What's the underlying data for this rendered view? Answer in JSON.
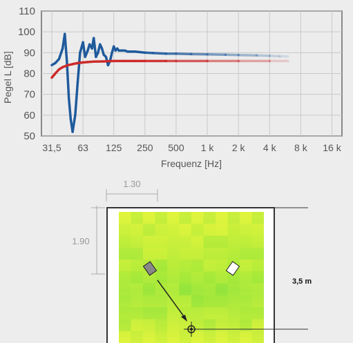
{
  "chart_data": {
    "type": "line",
    "ylabel": "Pegel L [dB]",
    "xlabel": "Frequenz [Hz]",
    "ylim": [
      50,
      110
    ],
    "yticks": [
      50,
      60,
      70,
      80,
      90,
      100,
      110
    ],
    "xtick_labels": [
      "31,5",
      "63",
      "125",
      "250",
      "500",
      "1 k",
      "2 k",
      "4 k",
      "8 k",
      "16 k"
    ],
    "xticks_hz": [
      31.5,
      63,
      125,
      250,
      500,
      1000,
      2000,
      4000,
      8000,
      16000
    ],
    "xlim_hz": [
      25,
      20000
    ],
    "grid": true,
    "series": [
      {
        "color": "#1f5a9c",
        "x": [
          31.5,
          34,
          37,
          40,
          42,
          44,
          46,
          48,
          50,
          53,
          56,
          59,
          63,
          66,
          70,
          73,
          77,
          80,
          84,
          88,
          92,
          96,
          100,
          105,
          110,
          115,
          120,
          125,
          130,
          135,
          140,
          150,
          160,
          170,
          180,
          200,
          250,
          300,
          400,
          500,
          700,
          1000,
          1500,
          2000,
          3000,
          4000,
          5000,
          6000
        ],
        "y": [
          84,
          85,
          87,
          92,
          99,
          86,
          68,
          58,
          52,
          60,
          76,
          90,
          95,
          88,
          91,
          94,
          92,
          97,
          88,
          90,
          94,
          92,
          89,
          88,
          84,
          86,
          90,
          93,
          91,
          92,
          91,
          91,
          91,
          90.5,
          90.5,
          90.5,
          90,
          89.8,
          89.5,
          89.5,
          89.3,
          89.2,
          89,
          88.9,
          88.7,
          88.5,
          88.3,
          88.2
        ]
      },
      {
        "color": "#cc2a2a",
        "x": [
          31.5,
          34,
          37,
          40,
          45,
          50,
          56,
          63,
          70,
          80,
          100,
          125,
          160,
          200,
          250,
          400,
          500,
          1000,
          2000,
          4000,
          6000
        ],
        "y": [
          78,
          80,
          82,
          83,
          84,
          84.5,
          85,
          85.3,
          85.5,
          85.7,
          85.8,
          86,
          86,
          86,
          86,
          86,
          86,
          86,
          86,
          86,
          86
        ]
      }
    ]
  },
  "room": {
    "width_label": "1.30",
    "height_label": "1.90",
    "distance_label": "3,5 m"
  }
}
